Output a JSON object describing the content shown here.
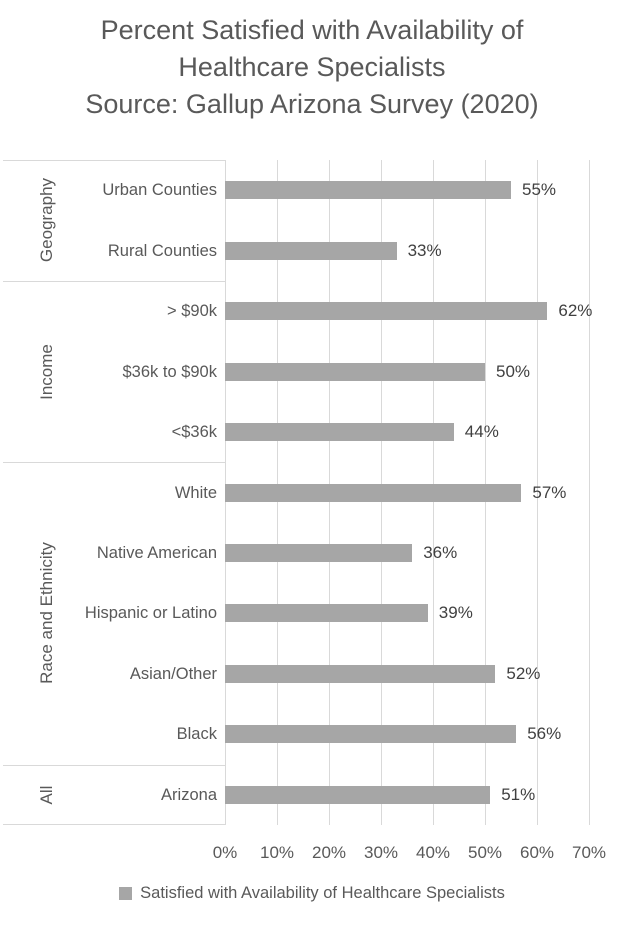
{
  "chart_data": {
    "type": "bar",
    "orientation": "horizontal",
    "title": "Percent Satisfied with Availability of Healthcare Specialists",
    "subtitle": "Source: Gallup Arizona Survey (2020)",
    "title_lines": [
      "Percent Satisfied with Availability of",
      "Healthcare Specialists",
      "Source: Gallup Arizona Survey (2020)"
    ],
    "groups": [
      {
        "label": "Geography",
        "items": [
          {
            "category": "Urban Counties",
            "value": 55,
            "label": "55%"
          },
          {
            "category": "Rural Counties",
            "value": 33,
            "label": "33%"
          }
        ]
      },
      {
        "label": "Income",
        "items": [
          {
            "category": "> $90k",
            "value": 62,
            "label": "62%"
          },
          {
            "category": "$36k to $90k",
            "value": 50,
            "label": "50%"
          },
          {
            "category": "<$36k",
            "value": 44,
            "label": "44%"
          }
        ]
      },
      {
        "label": "Race and Ethnicity",
        "items": [
          {
            "category": "White",
            "value": 57,
            "label": "57%"
          },
          {
            "category": "Native American",
            "value": 36,
            "label": "36%"
          },
          {
            "category": "Hispanic or Latino",
            "value": 39,
            "label": "39%"
          },
          {
            "category": "Asian/Other",
            "value": 52,
            "label": "52%"
          },
          {
            "category": "Black",
            "value": 56,
            "label": "56%"
          }
        ]
      },
      {
        "label": "All",
        "items": [
          {
            "category": "Arizona",
            "value": 51,
            "label": "51%"
          }
        ]
      }
    ],
    "x_axis": {
      "min": 0,
      "max": 70,
      "unit": "%",
      "ticks": [
        "0%",
        "10%",
        "20%",
        "30%",
        "40%",
        "50%",
        "60%",
        "70%"
      ],
      "gridlines": true
    },
    "legend": {
      "position": "bottom",
      "label": "Satisfied with Availability of Healthcare Specialists",
      "marker_color": "#a6a6a6"
    },
    "colors": {
      "bar": "#a6a6a6",
      "text": "#595959",
      "value_label": "#404040",
      "gridline": "#d9d9d9",
      "separator": "#d9d9d9",
      "background": "#ffffff"
    }
  }
}
